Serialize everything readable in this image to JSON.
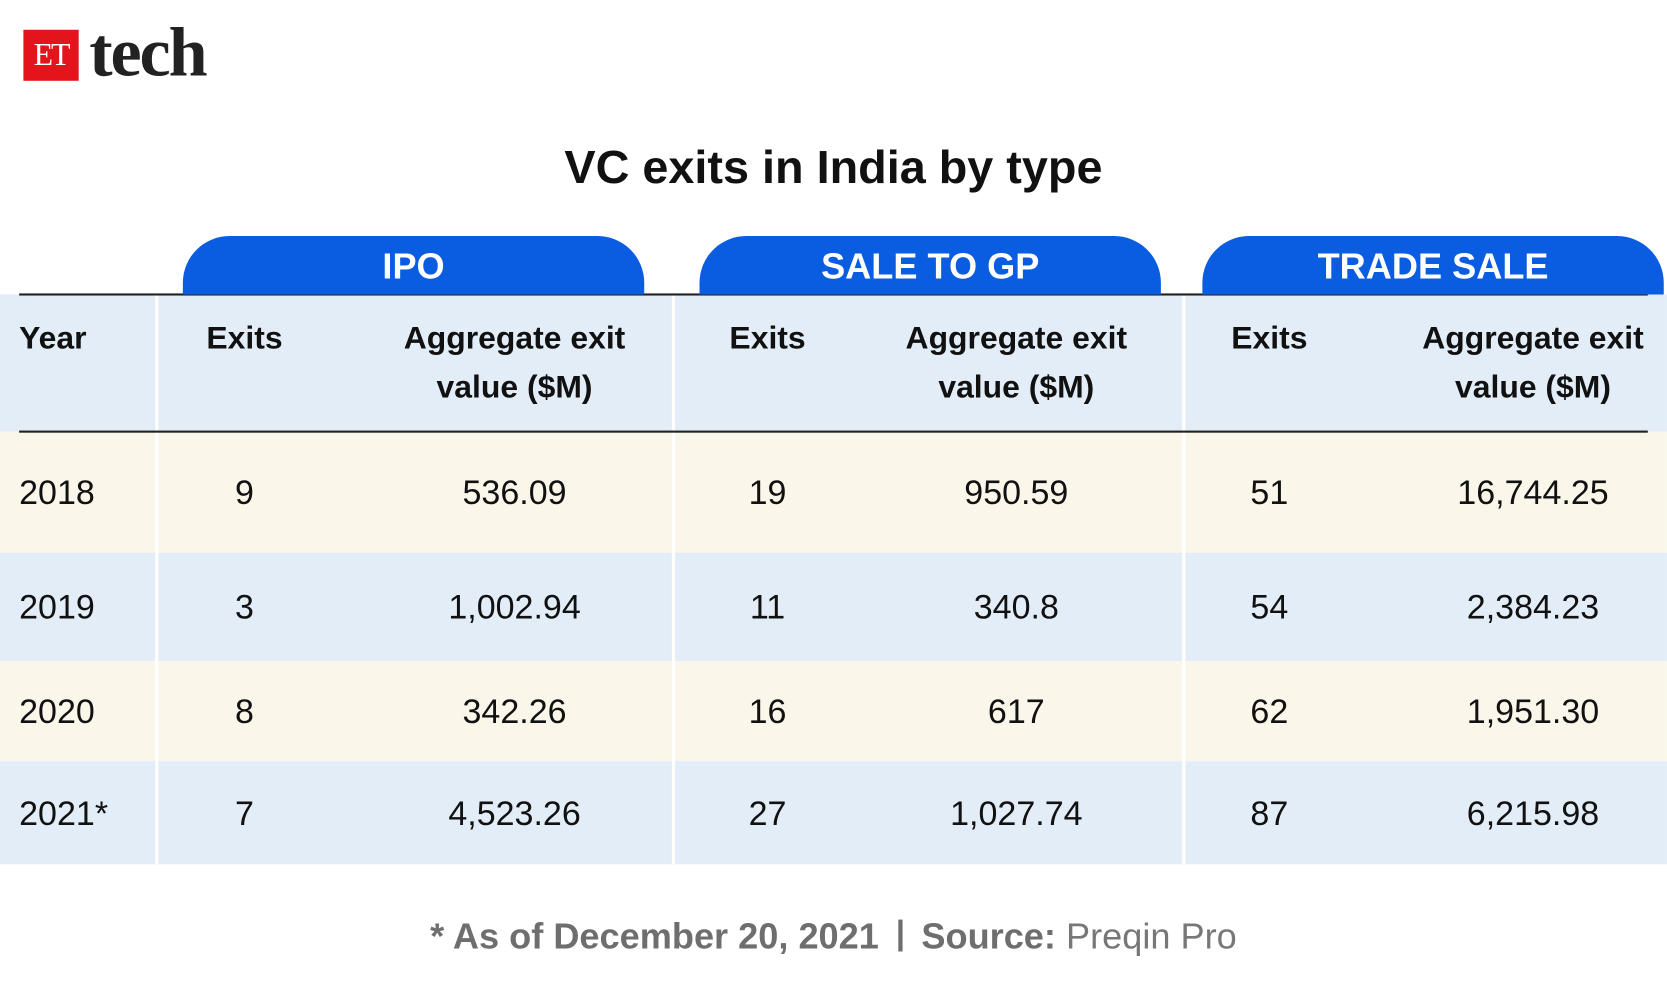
{
  "logo": {
    "badge": "ET",
    "text": "tech"
  },
  "title": "VC exits in India by type",
  "groups": [
    "IPO",
    "SALE TO GP",
    "TRADE SALE"
  ],
  "columns": [
    "Year",
    "Exits",
    "Aggregate exit value ($M)",
    "Exits",
    "Aggregate exit value ($M)",
    "Exits",
    "Aggregate exit value ($M)"
  ],
  "rows": [
    [
      "2018",
      "9",
      "536.09",
      "19",
      "950.59",
      "51",
      "16,744.25"
    ],
    [
      "2019",
      "3",
      "1,002.94",
      "11",
      "340.8",
      "54",
      "2,384.23"
    ],
    [
      "2020",
      "8",
      "342.26",
      "16",
      "617",
      "62",
      "1,951.30"
    ],
    [
      "2021*",
      "7",
      "4,523.26",
      "27",
      "1,027.74",
      "87",
      "6,215.98"
    ]
  ],
  "footnote": {
    "note": "* As of December 20, 2021",
    "source_label": "Source:",
    "source": "Preqin Pro"
  }
}
